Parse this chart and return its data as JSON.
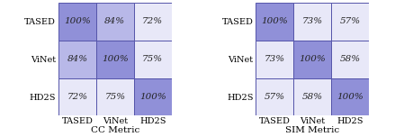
{
  "matrices": [
    {
      "values": [
        [
          100,
          84,
          72
        ],
        [
          84,
          100,
          75
        ],
        [
          72,
          75,
          100
        ]
      ],
      "title": "CC Metric",
      "colors": [
        [
          "#9090d8",
          "#b8b8e8",
          "#e8e8f8"
        ],
        [
          "#b8b8e8",
          "#9090d8",
          "#e8e8f8"
        ],
        [
          "#e8e8f8",
          "#e8e8f8",
          "#9090d8"
        ]
      ]
    },
    {
      "values": [
        [
          100,
          73,
          57
        ],
        [
          73,
          100,
          58
        ],
        [
          57,
          58,
          100
        ]
      ],
      "title": "SIM Metric",
      "colors": [
        [
          "#9090d8",
          "#e8e8f8",
          "#e8e8f8"
        ],
        [
          "#e8e8f8",
          "#9090d8",
          "#e8e8f8"
        ],
        [
          "#e8e8f8",
          "#e8e8f8",
          "#9090d8"
        ]
      ]
    }
  ],
  "row_labels": [
    "TASED",
    "ViNet",
    "HD2S"
  ],
  "col_labels": [
    "TASED",
    "ViNet",
    "HD2S"
  ],
  "text_color": "#222222",
  "border_color": "#5555aa",
  "cell_font_size": 7.5,
  "label_font_size": 7.0,
  "title_font_size": 7.5
}
